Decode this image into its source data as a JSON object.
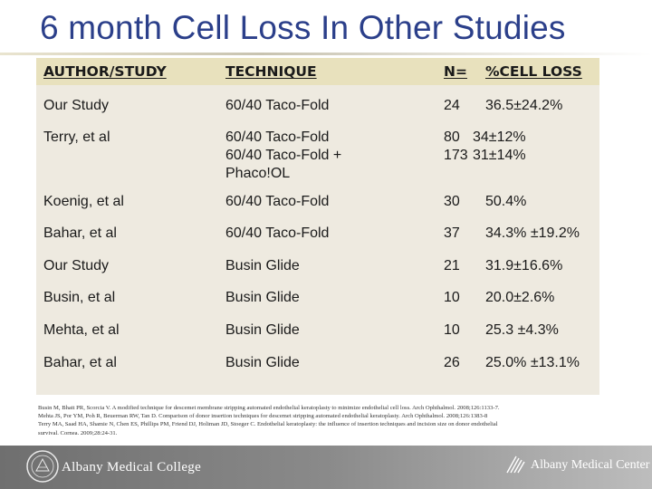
{
  "slide": {
    "title": "6 month Cell Loss In Other Studies"
  },
  "table": {
    "headers": {
      "author": "AUTHOR/STUDY",
      "technique": "TECHNIQUE",
      "n": "N=",
      "cell_loss": "%CELL LOSS"
    },
    "rows": [
      {
        "author": "Our Study",
        "technique": [
          "60/40 Taco-Fold"
        ],
        "n": [
          "24"
        ],
        "cell_loss": [
          "36.5±24.2%"
        ]
      },
      {
        "author": "Terry, et al",
        "technique": [
          "60/40 Taco-Fold",
          "60/40 Taco-Fold +",
          "Phaco!OL"
        ],
        "n": [
          "80",
          "173"
        ],
        "cell_loss": [
          "34±12%",
          "31±14%"
        ]
      },
      {
        "author": "Koenig, et al",
        "technique": [
          "60/40 Taco-Fold"
        ],
        "n": [
          "30"
        ],
        "cell_loss": [
          "50.4%"
        ]
      },
      {
        "author": "Bahar, et al",
        "technique": [
          "60/40 Taco-Fold"
        ],
        "n": [
          "37"
        ],
        "cell_loss": [
          "34.3% ±19.2%"
        ]
      },
      {
        "author": "Our Study",
        "technique": [
          "Busin Glide"
        ],
        "n": [
          "21"
        ],
        "cell_loss": [
          "31.9±16.6%"
        ]
      },
      {
        "author": "Busin, et al",
        "technique": [
          "Busin Glide"
        ],
        "n": [
          "10"
        ],
        "cell_loss": [
          "20.0±2.6%"
        ]
      },
      {
        "author": "Mehta, et al",
        "technique": [
          "Busin Glide"
        ],
        "n": [
          "10"
        ],
        "cell_loss": [
          "25.3 ±4.3%"
        ]
      },
      {
        "author": "Bahar, et al",
        "technique": [
          "Busin Glide"
        ],
        "n": [
          "26"
        ],
        "cell_loss": [
          "25.0% ±13.1%"
        ]
      }
    ]
  },
  "references": [
    "Busin M, Bhatt PR, Scorcia V. A modified technique for descemet membrane stripping automated endothelial keratoplasty to minimize endothelial cell loss. Arch Ophthalmol. 2008;126:1133-7.",
    "Mehta JS, Por YM, Poh R, Beuerman RW, Tan D. Comparison of donor insertion techniques for descemet stripping automated endothelial keratoplasty. Arch Ophthalmol. 2008;126:1383-8",
    "Terry MA, Saad HA, Shamie N, Chen ES, Phillips PM, Friend DJ, Holiman JD, Stoeger C. Endothelial keratoplasty: the influence of insertion techniques and incision size on donor endothelial",
    "survival. Cornea. 2009;28:24-31."
  ],
  "footer": {
    "college": "Albany Medical College",
    "center": "Albany Medical Center",
    "college_logo_icon": "college-seal-icon",
    "center_logo_icon": "medical-center-logo-icon",
    "background_colors": [
      "#6f6f6f",
      "#bdbdbd"
    ]
  },
  "colors": {
    "title": "#2b3f8a",
    "table_body": "#eeeae0",
    "table_header": "#e8e1bd"
  }
}
